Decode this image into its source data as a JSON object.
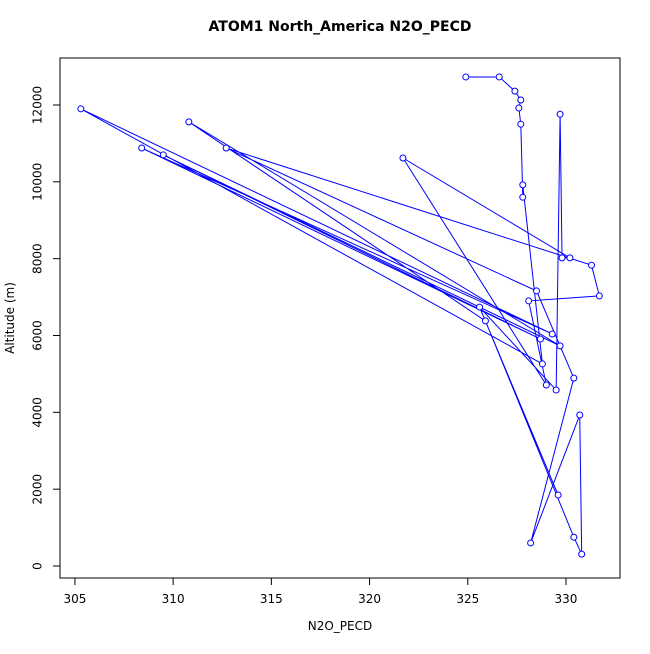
{
  "chart_data": {
    "type": "line",
    "title": "ATOM1 North_America N2O_PECD",
    "x_label": "N2O_PECD",
    "y_label": "Altitude (m)",
    "x": [
      324.9,
      326.6,
      327.4,
      327.7,
      327.6,
      327.7,
      327.8,
      327.8,
      328.8,
      305.3,
      329.3,
      308.4,
      328.7,
      309.5,
      329.7,
      310.8,
      325.9,
      330.4,
      330.8,
      330.7,
      328.2,
      330.4,
      328.5,
      312.7,
      331.3,
      331.7,
      328.1,
      329.0,
      321.7,
      330.2,
      329.8,
      329.7,
      329.5,
      325.6,
      329.6
    ],
    "values": [
      12730,
      12730,
      12360,
      12130,
      11920,
      11500,
      9600,
      9920,
      5260,
      11900,
      6040,
      10880,
      5910,
      10700,
      5730,
      11560,
      6380,
      750,
      310,
      3930,
      600,
      4890,
      7160,
      10880,
      7830,
      7030,
      6900,
      4710,
      10620,
      8020,
      8020,
      11760,
      4580,
      6740,
      1850
    ],
    "color": "#0000ff",
    "xlim": [
      304.24,
      332.75
    ],
    "xticks": [
      305,
      310,
      315,
      320,
      325,
      330
    ],
    "ylim": [
      -312,
      13223
    ],
    "yticks": [
      0,
      2000,
      4000,
      6000,
      8000,
      10000,
      12000
    ]
  }
}
